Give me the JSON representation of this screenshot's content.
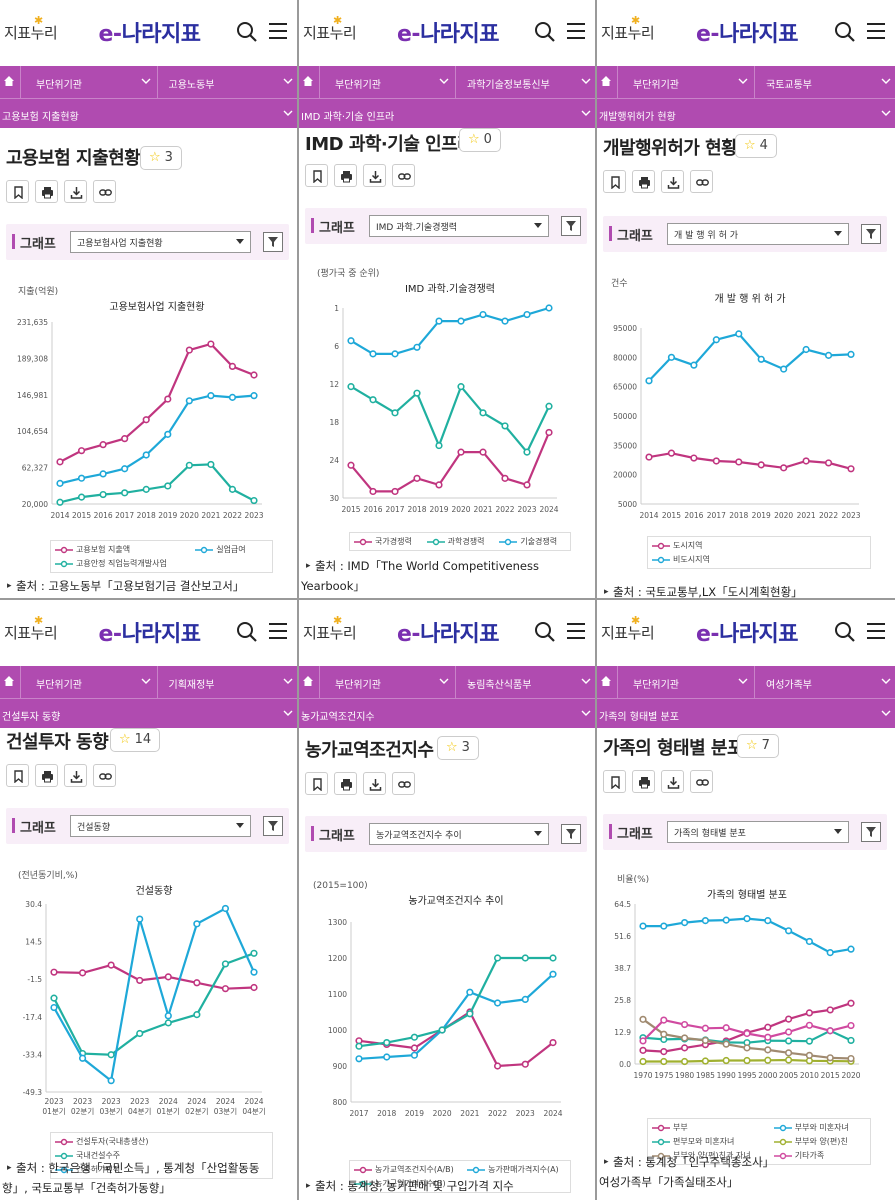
{
  "brand": {
    "left_logo": "지표누리",
    "center_logo_e": "e-",
    "center_logo_rest": "나라지표"
  },
  "nav": {
    "level1": "부단위기관"
  },
  "colors": {
    "nav": "#b04bb0",
    "pink": "#c0357f",
    "cyan": "#1ea8d8",
    "teal": "#20b0a0",
    "dark": "#a0306f"
  },
  "panels": [
    {
      "ministry": "고용노동부",
      "breadcrumb": "고용보험 지출현황",
      "title": "고용보험 지출현황",
      "stars": "3",
      "graph_label": "그래프",
      "graph_select": "고용보험사업 지출현황",
      "source_lines": [
        "출처 : 고용노동부「고용보험기금 결산보고서」"
      ],
      "chart_data": {
        "type": "line",
        "title": "고용보험사업 지출현황",
        "ylabel": "지출(억원)",
        "xlabel": "",
        "x": [
          "2014",
          "2015",
          "2016",
          "2017",
          "2018",
          "2019",
          "2020",
          "2021",
          "2022",
          "2023"
        ],
        "ylim": [
          20000,
          231635
        ],
        "yticks": [
          "231,635",
          "189,308",
          "146,981",
          "104,654",
          "62,327",
          "20,000"
        ],
        "series": [
          {
            "name": "고용보험 지출액",
            "color": "#c0357f",
            "values": [
              69000,
              82000,
              89000,
              96000,
              118000,
              142000,
              199000,
              206000,
              180000,
              170000
            ]
          },
          {
            "name": "실업급여",
            "color": "#1ea8d8",
            "values": [
              44000,
              50000,
              55000,
              61000,
              77000,
              101000,
              140000,
              146000,
              144000,
              146000
            ]
          },
          {
            "name": "고용안정 직업능력개발사업",
            "color": "#20b0a0",
            "values": [
              22000,
              28000,
              31000,
              33000,
              37000,
              41000,
              65000,
              66000,
              37000,
              24000
            ]
          }
        ]
      }
    },
    {
      "ministry": "과학기술정보통신부",
      "breadcrumb": "IMD 과학·기술 인프라",
      "title": "IMD 과학·기술 인프라",
      "stars": "0",
      "graph_label": "그래프",
      "graph_select": "IMD 과학.기술경쟁력",
      "source_lines": [
        "출처 : IMD「The World Competitiveness",
        "Yearbook」"
      ],
      "chart_data": {
        "type": "line",
        "title": "IMD 과학.기술경쟁력",
        "ylabel": "(평가국 중 순위)",
        "xlabel": "",
        "x": [
          "2015",
          "2016",
          "2017",
          "2018",
          "2019",
          "2020",
          "2021",
          "2022",
          "2023",
          "2024"
        ],
        "ylim": [
          30,
          1
        ],
        "yticks": [
          "1",
          "6",
          "12",
          "18",
          "24",
          "30"
        ],
        "series": [
          {
            "name": "국가경쟁력",
            "color": "#c0357f",
            "values": [
              25,
              29,
              29,
              27,
              28,
              23,
              23,
              27,
              28,
              20
            ]
          },
          {
            "name": "과학경쟁력",
            "color": "#20b0a0",
            "values": [
              13,
              15,
              17,
              14,
              22,
              13,
              17,
              19,
              23,
              16
            ]
          },
          {
            "name": "기술경쟁력",
            "color": "#1ea8d8",
            "values": [
              6,
              8,
              8,
              7,
              3,
              3,
              2,
              3,
              2,
              1
            ]
          }
        ]
      }
    },
    {
      "ministry": "국토교통부",
      "breadcrumb": "개발행위허가 현황",
      "title": "개발행위허가 현황",
      "stars": "4",
      "graph_label": "그래프",
      "graph_select": "개 발 행 위 허 가",
      "source_lines": [
        "출처 : 국토교통부,LX「도시계획현황」"
      ],
      "chart_data": {
        "type": "line",
        "title": "개 발 행 위 허 가",
        "ylabel": "건수",
        "xlabel": "",
        "x": [
          "2014",
          "2015",
          "2016",
          "2017",
          "2018",
          "2019",
          "2020",
          "2021",
          "2022",
          "2023"
        ],
        "ylim": [
          5000,
          95000
        ],
        "yticks": [
          "95000",
          "80000",
          "65000",
          "50000",
          "35000",
          "20000",
          "5000"
        ],
        "series": [
          {
            "name": "도시지역",
            "color": "#c0357f",
            "values": [
              29000,
              31000,
              28500,
              27000,
              26500,
              25000,
              23500,
              27000,
              26000,
              23000
            ]
          },
          {
            "name": "비도시지역",
            "color": "#1ea8d8",
            "values": [
              68000,
              80000,
              76000,
              89000,
              92000,
              79000,
              74000,
              84000,
              81000,
              81500
            ]
          }
        ]
      }
    },
    {
      "ministry": "기획재정부",
      "breadcrumb": "건설투자 동향",
      "title": "건설투자 동향",
      "stars": "14",
      "graph_label": "그래프",
      "graph_select": "건설동향",
      "source_lines": [
        "출처 : 한국은행「국민소득」, 통계청「산업활동동",
        "향」, 국토교통부「건축허가동향」"
      ],
      "chart_data": {
        "type": "line",
        "title": "건설동향",
        "ylabel": "(전년동기비,%)",
        "xlabel": "",
        "x": [
          "2023 01분기",
          "2023 02분기",
          "2023 03분기",
          "2023 04분기",
          "2024 01분기",
          "2024 02분기",
          "2024 03분기",
          "2024 04분기"
        ],
        "ylim": [
          -49.3,
          30.4
        ],
        "yticks": [
          "30.4",
          "14.5",
          "-1.5",
          "-17.4",
          "-33.4",
          "-49.3"
        ],
        "series": [
          {
            "name": "건설투자(국내총생산)",
            "color": "#c0357f",
            "values": [
              1.5,
              1.2,
              4.5,
              -2.0,
              -0.5,
              -3.0,
              -5.5,
              -5.0
            ]
          },
          {
            "name": "국내건설수주",
            "color": "#20b0a0",
            "values": [
              -9.5,
              -33.0,
              -33.5,
              -24.5,
              -20.0,
              -16.5,
              5.0,
              9.5
            ]
          },
          {
            "name": "건축허가면적",
            "color": "#1ea8d8",
            "values": [
              -13.5,
              -35.0,
              -44.5,
              24.0,
              -17.0,
              22.0,
              28.5,
              1.5
            ]
          }
        ]
      }
    },
    {
      "ministry": "농림축산식품부",
      "breadcrumb": "농가교역조건지수",
      "title": "농가교역조건지수",
      "stars": "3",
      "graph_label": "그래프",
      "graph_select": "농가교역조건지수 추이",
      "source_lines": [
        "출처 : 통계청, 농가판매 및 구입가격 지수"
      ],
      "chart_data": {
        "type": "line",
        "title": "농가교역조건지수 추이",
        "ylabel": "(2015=100)",
        "xlabel": "",
        "x": [
          "2017",
          "2018",
          "2019",
          "2020",
          "2021",
          "2022",
          "2023",
          "2024"
        ],
        "ylim": [
          800,
          1300
        ],
        "yticks": [
          "1300",
          "1200",
          "1100",
          "1000",
          "900",
          "800"
        ],
        "series": [
          {
            "name": "농가교역조건지수(A/B)",
            "color": "#c0357f",
            "values": [
              970,
              960,
              950,
              1000,
              1050,
              900,
              905,
              965
            ]
          },
          {
            "name": "농가판매가격지수(A)",
            "color": "#1ea8d8",
            "values": [
              920,
              925,
              930,
              1000,
              1105,
              1075,
              1085,
              1155
            ]
          },
          {
            "name": "농가구입가격지수(B)",
            "color": "#20b0a0",
            "values": [
              955,
              965,
              980,
              1000,
              1045,
              1200,
              1200,
              1200
            ]
          }
        ]
      }
    },
    {
      "ministry": "여성가족부",
      "breadcrumb": "가족의 형태별 분포",
      "title": "가족의 형태별 분포",
      "stars": "7",
      "graph_label": "그래프",
      "graph_select": "가족의 형태별 분포",
      "source_lines": [
        "출처 : 통계청「인구주택총조사」",
        "여성가족부「가족실태조사」"
      ],
      "chart_data": {
        "type": "line",
        "title": "가족의 형태별 분포",
        "ylabel": "비율(%)",
        "xlabel": "",
        "x": [
          "1970",
          "1975",
          "1980",
          "1985",
          "1990",
          "1995",
          "2000",
          "2005",
          "2010",
          "2015",
          "2020"
        ],
        "ylim": [
          0,
          64.5
        ],
        "yticks": [
          "64.5",
          "51.6",
          "38.7",
          "25.8",
          "12.9",
          "0.0"
        ],
        "series": [
          {
            "name": "부부",
            "color": "#c0357f",
            "values": [
              5.5,
              5.0,
              6.5,
              7.8,
              9.3,
              12.6,
              14.8,
              18.1,
              20.6,
              21.8,
              24.5
            ]
          },
          {
            "name": "부부와 미혼자녀",
            "color": "#1ea8d8",
            "values": [
              55.6,
              55.6,
              57.0,
              57.8,
              58.0,
              58.6,
              57.8,
              53.7,
              49.4,
              44.9,
              46.3
            ]
          },
          {
            "name": "편부모와 미혼자녀",
            "color": "#20b0a0",
            "values": [
              10.6,
              9.9,
              10.1,
              9.7,
              8.7,
              8.6,
              9.4,
              9.3,
              9.2,
              13.4,
              9.5
            ]
          },
          {
            "name": "부부와 양(편)친",
            "color": "#a0b030",
            "values": [
              1.0,
              1.0,
              1.0,
              1.2,
              1.4,
              1.4,
              1.5,
              1.6,
              1.3,
              1.2,
              1.1
            ]
          },
          {
            "name": "부부와 양(편)친과 자녀",
            "color": "#a08a70",
            "values": [
              18.0,
              12.0,
              10.5,
              9.5,
              8.0,
              6.5,
              5.7,
              4.5,
              3.5,
              2.5,
              2.2
            ]
          },
          {
            "name": "기타가족",
            "color": "#d04aa0",
            "values": [
              9.3,
              17.7,
              15.9,
              14.4,
              14.6,
              12.3,
              10.8,
              12.9,
              15.6,
              13.4,
              15.5
            ]
          }
        ]
      }
    }
  ]
}
